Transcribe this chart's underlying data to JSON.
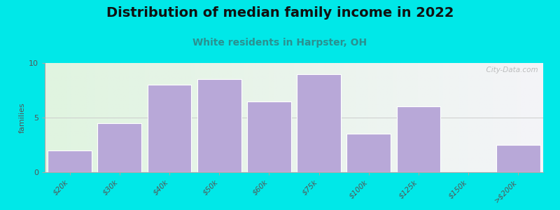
{
  "title": "Distribution of median family income in 2022",
  "subtitle": "White residents in Harpster, OH",
  "categories": [
    "$20k",
    "$30k",
    "$40k",
    "$50k",
    "$60k",
    "$75k",
    "$100k",
    "$125k",
    "$150k",
    ">$200k"
  ],
  "values": [
    2.0,
    4.5,
    8.0,
    8.5,
    6.5,
    9.0,
    3.5,
    6.0,
    0,
    2.5
  ],
  "bar_color": "#b8a8d8",
  "bar_edgecolor": "#ffffff",
  "background_outer": "#00e8e8",
  "ylabel": "families",
  "ylim": [
    0,
    10
  ],
  "yticks": [
    0,
    5,
    10
  ],
  "title_fontsize": 14,
  "subtitle_fontsize": 10,
  "subtitle_color": "#2a9090",
  "watermark": "  City-Data.com"
}
